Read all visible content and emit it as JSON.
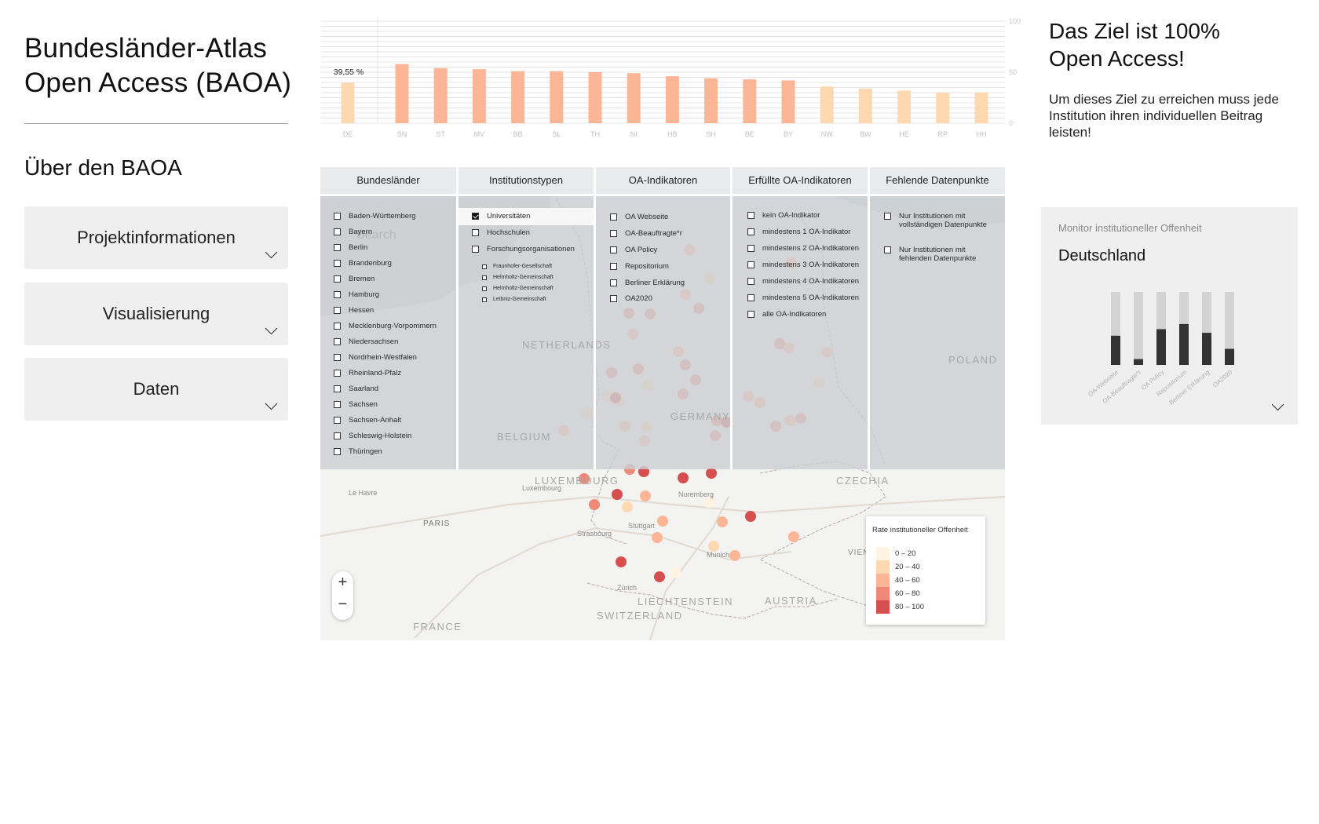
{
  "sidebar": {
    "title_line1": "Bundesländer-Atlas",
    "title_line2": "Open Access (BAOA)",
    "about_heading": "Über den BAOA",
    "accordion": [
      {
        "label": "Projektinformationen"
      },
      {
        "label": "Visualisierung"
      },
      {
        "label": "Daten"
      }
    ]
  },
  "chart_data": {
    "type": "bar",
    "categories": [
      "DE",
      "SN",
      "ST",
      "MV",
      "BB",
      "SL",
      "TH",
      "NI",
      "HB",
      "SH",
      "BE",
      "BY",
      "NW",
      "BW",
      "HE",
      "RP",
      "HH"
    ],
    "values": [
      39.55,
      58,
      54,
      53,
      51,
      51,
      50,
      49,
      46,
      44,
      43,
      42,
      36,
      34,
      32,
      30,
      30
    ],
    "highlight_label": "39,55 %",
    "ylim": [
      0,
      100
    ],
    "yticks": [
      0,
      50,
      100
    ],
    "grid": true,
    "colors": {
      "above": "#fcb696",
      "below": "#fed8b0",
      "de": "#fed8b0"
    },
    "threshold": 39.55
  },
  "filters": {
    "headers": [
      "Bundesländer",
      "Institutionstypen",
      "OA-Indikatoren",
      "Erfüllte OA-Indikatoren",
      "Fehlende Datenpunkte"
    ],
    "bundeslaender": [
      "Baden-Württemberg",
      "Bayern",
      "Berlin",
      "Brandenburg",
      "Bremen",
      "Hamburg",
      "Hessen",
      "Mecklenburg-Vorpommern",
      "Niedersachsen",
      "Nordrhein-Westfalen",
      "Rheinland-Pfalz",
      "Saarland",
      "Sachsen",
      "Sachsen-Anhalt",
      "Schleswig-Holstein",
      "Thüringen"
    ],
    "institutionstypen": [
      {
        "label": "Universitäten",
        "checked": true
      },
      {
        "label": "Hochschulen",
        "checked": false
      },
      {
        "label": "Forschungsorganisationen",
        "checked": false
      }
    ],
    "forschungsorganisationen": [
      "Fraunhofer-Gesellschaft",
      "Helmholtz-Gemeinschaft",
      "Helmholtz-Gemeinschaft",
      "Leibniz-Gemeinschaft"
    ],
    "oa_indikatoren": [
      "OA Webseite",
      "OA-Beauftragte*r",
      "OA Policy",
      "Repositorium",
      "Berliner Erklärung",
      "OA2020"
    ],
    "erfuellte": [
      "kein OA-Indikator",
      "mindestens 1 OA-Indikator",
      "mindestens 2 OA-Indikatoren",
      "mindestens 3 OA-Indikatoren",
      "mindestens 4 OA-Indikatoren",
      "mindestens 5 OA-Indikatoren",
      "alle OA-Indikatoren"
    ],
    "fehlende": [
      {
        "line1": "Nur Institutionen mit",
        "line2": "vollständigen Datenpunkte"
      },
      {
        "line1": "Nur Institutionen mit",
        "line2": "fehlenden Datenpunkte"
      }
    ]
  },
  "map": {
    "labels": {
      "luxembourg": "LUXEMBOURG",
      "luxembourg_city": "Luxembourg",
      "czechia": "CZECHIA",
      "nuremberg": "Nuremberg",
      "paris": "PARIS",
      "strasbourg": "Strasbourg",
      "stuttgart": "Stuttgart",
      "munich": "Munich",
      "vienna": "VIEN",
      "zurich": "Zürich",
      "liechtenstein": "LIECHTENSTEIN",
      "switzerland": "SWITZERLAND",
      "austria": "AUSTRIA",
      "france": "FRANCE",
      "le_havre": "Le Havre",
      "netherlands": "NETHERLANDS",
      "belgium": "BELGIUM",
      "germany": "GERMANY",
      "poland": "POLAND",
      "search": "Search"
    },
    "zoom_in": "+",
    "zoom_out": "−",
    "legend": {
      "title": "Rate institutioneller Offenheit",
      "items": [
        {
          "label": "0 – 20",
          "color": "#fff3e1"
        },
        {
          "label": "20 – 40",
          "color": "#fed8b0"
        },
        {
          "label": "40 – 60",
          "color": "#fcb696"
        },
        {
          "label": "60 – 80",
          "color": "#f08878"
        },
        {
          "label": "80 – 100",
          "color": "#d54f4f"
        }
      ]
    }
  },
  "goal": {
    "line1": "Das Ziel ist 100%",
    "line2": "Open Access!",
    "text": "Um dieses Ziel zu erreichen muss jede Institution ihren individuellen Beitrag leisten!"
  },
  "monitor": {
    "title": "Monitor institutioneller Offenheit",
    "region": "Deutschland",
    "chart_data": {
      "type": "bar",
      "categories": [
        "OA-Webseite",
        "OA-Beauftragte*r",
        "OA Policy",
        "Repositorium",
        "Berliner Erklärung",
        "OA2020"
      ],
      "values": [
        40,
        8,
        49,
        56,
        44,
        22
      ],
      "ylim": [
        0,
        100
      ],
      "colors": {
        "filled": "#333333",
        "rest": "#d3d3d3"
      }
    }
  }
}
